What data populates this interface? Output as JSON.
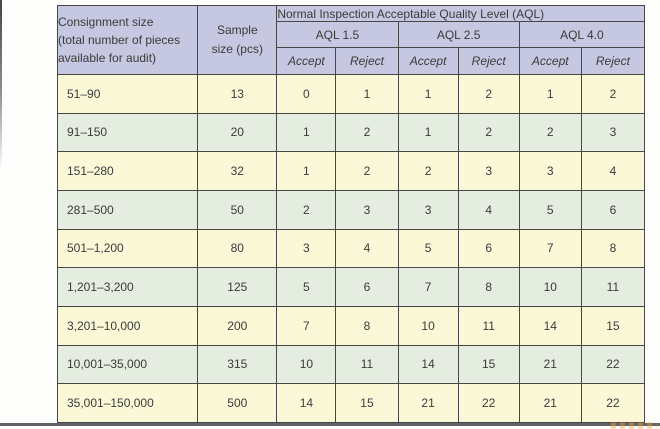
{
  "colors": {
    "page_bg": "#fdfdfb",
    "header_bg": "#c5c8e0",
    "row_cream": "#fbf8d8",
    "row_sage": "#e4eddf",
    "border": "#474747",
    "text": "#3b3b3b",
    "rule": "#5e6267"
  },
  "table": {
    "title": "Normal Inspection Acceptable Quality Level (AQL)",
    "consignment_header": "Consignment size\n(total number of pieces\navailable for audit)",
    "sample_header": "Sample\nsize (pcs)",
    "aql_groups": [
      "AQL 1.5",
      "AQL 2.5",
      "AQL 4.0"
    ],
    "accept_label": "Accept",
    "reject_label": "Reject",
    "rows": [
      {
        "consignment": "51–90",
        "sample": "13",
        "values": [
          "0",
          "1",
          "1",
          "2",
          "1",
          "2"
        ]
      },
      {
        "consignment": "91–150",
        "sample": "20",
        "values": [
          "1",
          "2",
          "1",
          "2",
          "2",
          "3"
        ]
      },
      {
        "consignment": "151–280",
        "sample": "32",
        "values": [
          "1",
          "2",
          "2",
          "3",
          "3",
          "4"
        ]
      },
      {
        "consignment": "281–500",
        "sample": "50",
        "values": [
          "2",
          "3",
          "3",
          "4",
          "5",
          "6"
        ]
      },
      {
        "consignment": "501–1,200",
        "sample": "80",
        "values": [
          "3",
          "4",
          "5",
          "6",
          "7",
          "8"
        ]
      },
      {
        "consignment": "1,201–3,200",
        "sample": "125",
        "values": [
          "5",
          "6",
          "7",
          "8",
          "10",
          "11"
        ]
      },
      {
        "consignment": "3,201–10,000",
        "sample": "200",
        "values": [
          "7",
          "8",
          "10",
          "11",
          "14",
          "15"
        ]
      },
      {
        "consignment": "10,001–35,000",
        "sample": "315",
        "values": [
          "10",
          "11",
          "14",
          "15",
          "21",
          "22"
        ]
      },
      {
        "consignment": "35,001–150,000",
        "sample": "500",
        "values": [
          "14",
          "15",
          "21",
          "22",
          "21",
          "22"
        ]
      }
    ]
  }
}
